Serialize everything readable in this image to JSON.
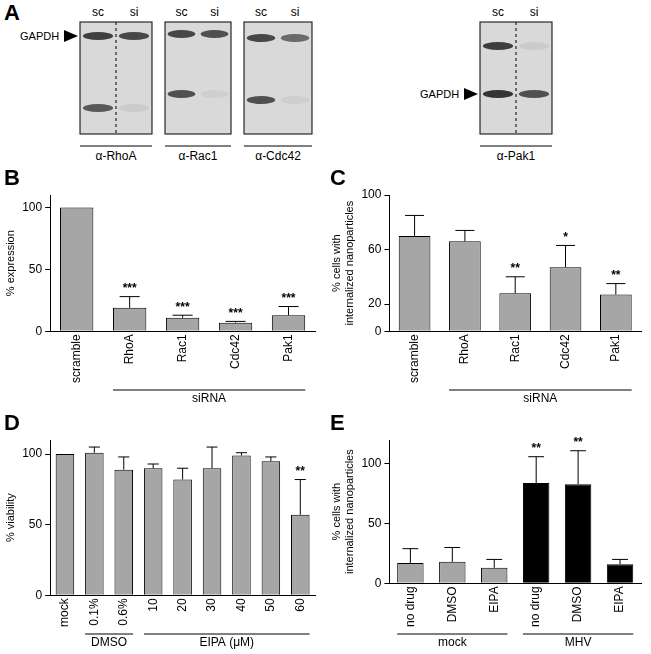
{
  "blot_panel": {
    "panel": "A",
    "lanes": [
      "sc",
      "si"
    ],
    "loading_control": "GAPDH",
    "antibodies": [
      "α-RhoA",
      "α-Rac1",
      "α-Cdc42",
      "α-Pak1"
    ]
  },
  "chart_data": [
    {
      "panel": "B",
      "type": "bar",
      "y_label": [
        "% expression"
      ],
      "categories": [
        "scramble",
        "RhoA",
        "Rac1",
        "Cdc42",
        "Pak1"
      ],
      "category_groups": [
        null,
        "siRNA",
        "siRNA",
        "siRNA",
        "siRNA"
      ],
      "values": [
        100,
        19,
        11,
        7,
        13
      ],
      "errors": [
        null,
        9,
        2,
        1,
        7
      ],
      "significance": [
        null,
        "***",
        "***",
        "***",
        "***"
      ],
      "color": "#a6a6a6",
      "ylim": [
        0,
        110
      ],
      "yticks": [
        0,
        50,
        100
      ],
      "grid": false
    },
    {
      "panel": "C",
      "type": "bar",
      "y_label": [
        "% cells with",
        "internalized nanoparticles"
      ],
      "categories": [
        "scramble",
        "RhoA",
        "Rac1",
        "Cdc42",
        "Pak1"
      ],
      "category_groups": [
        null,
        "siRNA",
        "siRNA",
        "siRNA",
        "siRNA"
      ],
      "values": [
        70,
        66,
        28,
        47,
        27
      ],
      "errors": [
        15,
        8,
        12,
        16,
        8
      ],
      "significance": [
        null,
        null,
        "**",
        "*",
        "**"
      ],
      "color": "#a6a6a6",
      "ylim": [
        0,
        100
      ],
      "yticks": [
        0,
        20,
        60,
        100
      ],
      "grid": false
    },
    {
      "panel": "D",
      "type": "bar",
      "y_label": [
        "% viability"
      ],
      "categories": [
        "mock",
        "0.1%",
        "0.6%",
        "10",
        "20",
        "30",
        "40",
        "50",
        "60"
      ],
      "category_groups": [
        null,
        "DMSO",
        "DMSO",
        "EIPA (μM)",
        "EIPA (μM)",
        "EIPA (μM)",
        "EIPA (μM)",
        "EIPA (μM)",
        "EIPA (μM)"
      ],
      "values": [
        100,
        101,
        89,
        90,
        82,
        90,
        99,
        95,
        57
      ],
      "errors": [
        null,
        4,
        9,
        3,
        8,
        15,
        2,
        3,
        25
      ],
      "significance": [
        null,
        null,
        null,
        null,
        null,
        null,
        null,
        null,
        "**"
      ],
      "color": "#a6a6a6",
      "ylim": [
        0,
        110
      ],
      "yticks": [
        0,
        50,
        100
      ],
      "grid": false
    },
    {
      "panel": "E",
      "type": "bar",
      "y_label": [
        "% cells with",
        "internalized nanoparticles"
      ],
      "categories": [
        "no drug",
        "DMSO",
        "EIPA",
        "no drug",
        "DMSO",
        "EIPA"
      ],
      "category_groups": [
        "mock",
        "mock",
        "mock",
        "MHV",
        "MHV",
        "MHV"
      ],
      "values": [
        17,
        18,
        13,
        84,
        83,
        16
      ],
      "errors": [
        12,
        12,
        7,
        22,
        28,
        4
      ],
      "significance": [
        null,
        null,
        null,
        "**",
        "**",
        null
      ],
      "colors": [
        "#a6a6a6",
        "#a6a6a6",
        "#a6a6a6",
        "#000000",
        "#000000",
        "#000000"
      ],
      "ylim": [
        0,
        120
      ],
      "yticks": [
        0,
        50,
        100
      ],
      "grid": false
    }
  ]
}
